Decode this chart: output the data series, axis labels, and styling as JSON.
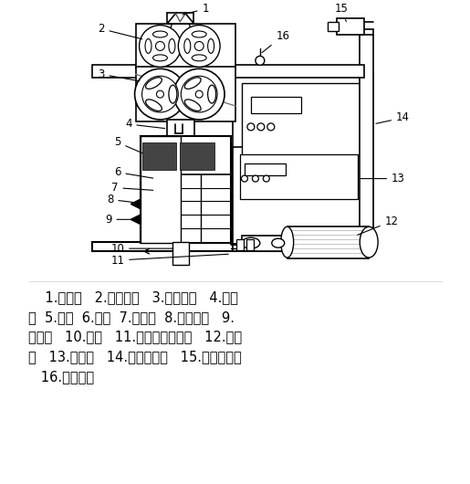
{
  "caption_lines": [
    "    1.入料斗   2.混合搅龙   3.输送搅龙   4.检视",
    "窗  5.压辊  6.平模  7.切料刀  8.出料刮板   9.",
    "出料口   10.主轴   11.锥齿轮传动机构   12.主电",
    "机   13.电控箱   14.链传动机构   15.链传动电机",
    "   16.蒸汽入口"
  ],
  "bg_color": "#ffffff"
}
